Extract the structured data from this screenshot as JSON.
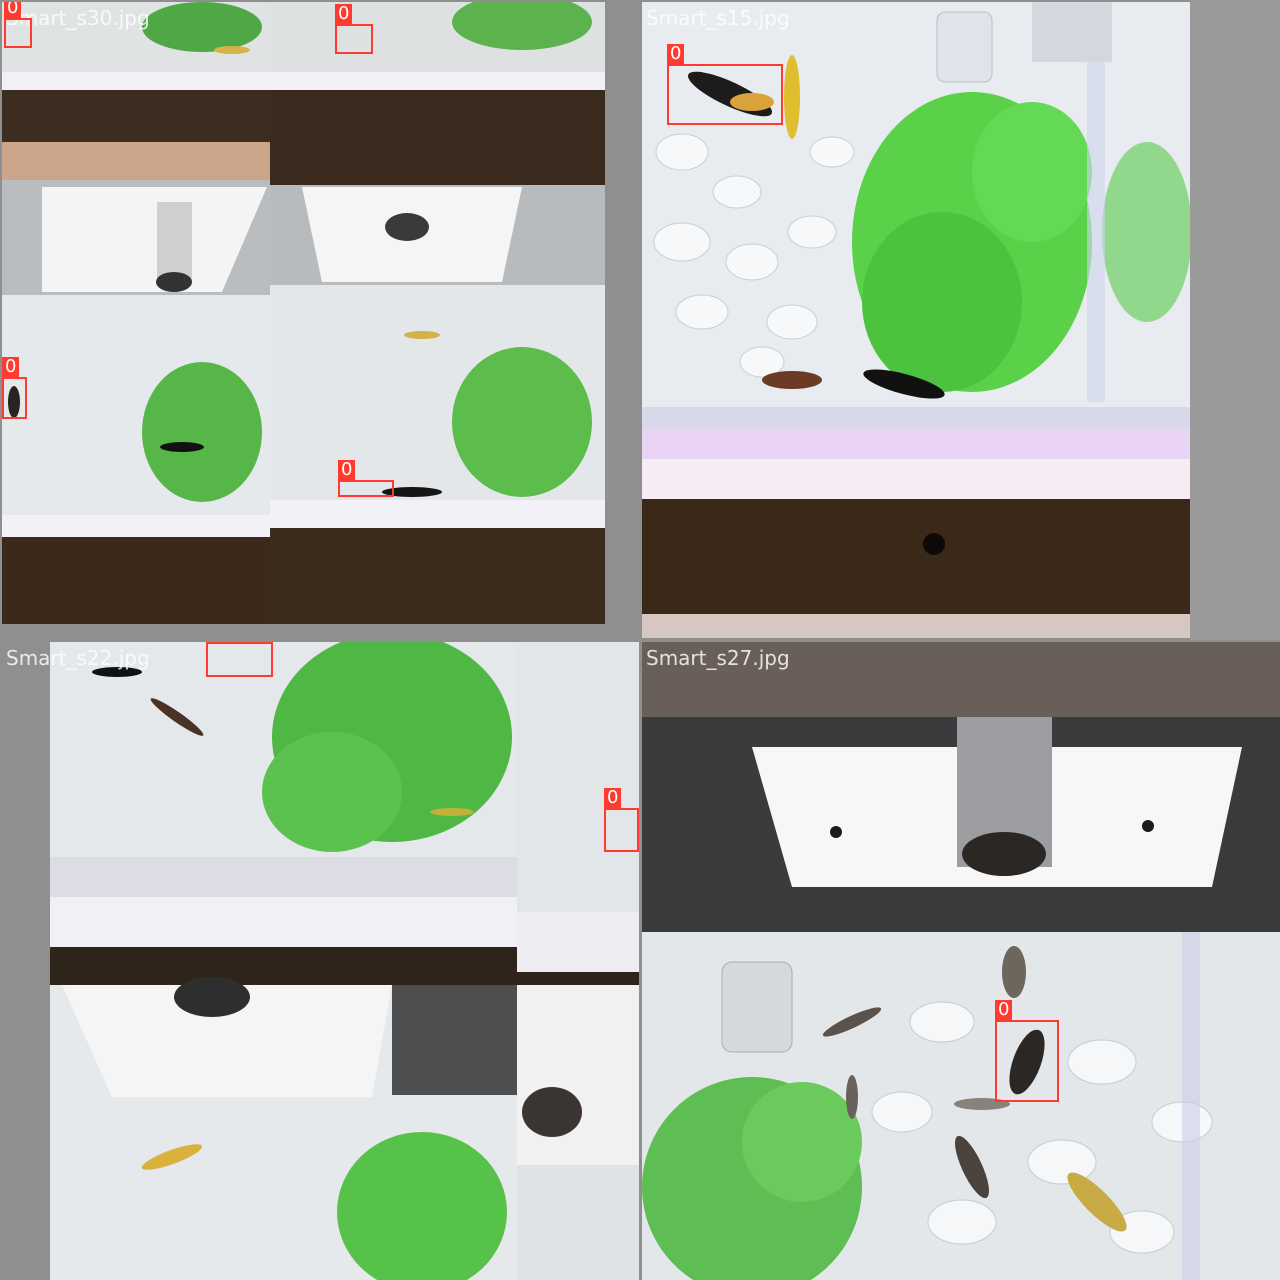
{
  "tiles": [
    {
      "filename": "Smart_s30.jpg"
    },
    {
      "filename": "Smart_s15.jpg"
    },
    {
      "filename": "Smart_s22.jpg"
    },
    {
      "filename": "Smart_s27.jpg"
    }
  ],
  "detection_label": "0",
  "colors": {
    "box": "#ff3b30",
    "plant": "#58c24a",
    "gravel": "#e9ecef",
    "wood": "#3b2a1c",
    "background": "#8f8f8f"
  }
}
